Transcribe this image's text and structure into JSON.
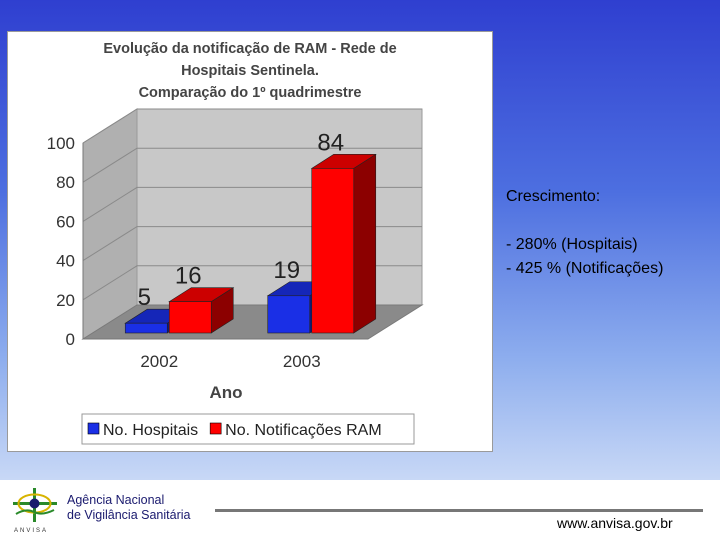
{
  "chart_data": {
    "type": "bar",
    "title_lines": [
      "Evolução da notificação de RAM - Rede de",
      "Hospitais Sentinela.",
      "Comparação do 1º quadrimestre"
    ],
    "categories": [
      "2002",
      "2003"
    ],
    "series": [
      {
        "name": "No. Hospitais",
        "values": [
          5,
          19
        ],
        "color": "#1a2fe6"
      },
      {
        "name": "No. Notificações RAM",
        "values": [
          16,
          84
        ],
        "color": "#ff0000"
      }
    ],
    "data_labels": [
      [
        "5",
        "19"
      ],
      [
        "16",
        "84"
      ]
    ],
    "xlabel": "Ano",
    "ylabel": "",
    "ylim": [
      0,
      100
    ],
    "yticks": [
      0,
      20,
      40,
      60,
      80,
      100
    ],
    "grid": true,
    "legend_position": "bottom"
  },
  "growth": {
    "title": "Crescimento:",
    "lines": [
      "- 280% (Hospitais)",
      "- 425 % (Notificações)"
    ]
  },
  "footer": {
    "agency_lines": [
      "Agência Nacional",
      "de Vigilância Sanitária"
    ],
    "url": "www.anvisa.gov.br",
    "logo_caption": "ANVISA"
  }
}
